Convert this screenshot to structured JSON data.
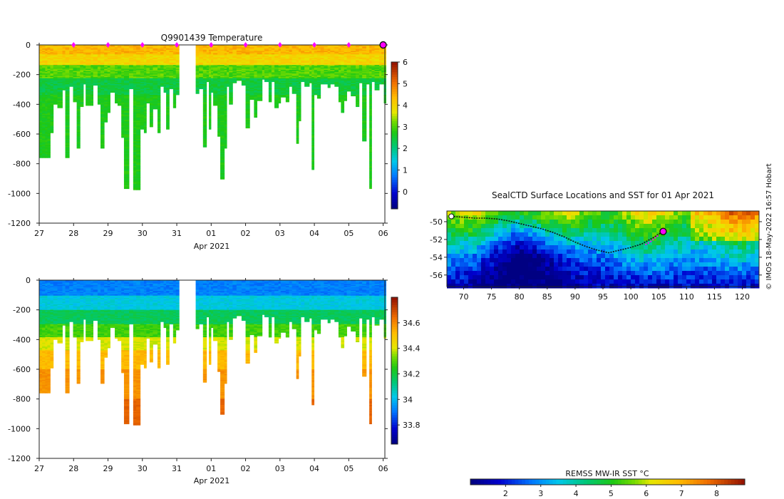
{
  "chart_data": [
    {
      "id": "temp",
      "type": "heatmap",
      "title": "Q9901439  Temperature",
      "xlabel": "Apr 2021",
      "ylabel": "",
      "x_ticks": [
        {
          "day": 0,
          "label": "27"
        },
        {
          "day": 1,
          "label": "28"
        },
        {
          "day": 2,
          "label": "29"
        },
        {
          "day": 3,
          "label": "30"
        },
        {
          "day": 4,
          "label": "31"
        },
        {
          "day": 5,
          "label": "01"
        },
        {
          "day": 6,
          "label": "02"
        },
        {
          "day": 7,
          "label": "03"
        },
        {
          "day": 8,
          "label": "04"
        },
        {
          "day": 9,
          "label": "05"
        },
        {
          "day": 10,
          "label": "06"
        }
      ],
      "y_ticks": [
        "0",
        "-200",
        "-400",
        "-600",
        "-800",
        "-1000",
        "-1200"
      ],
      "y_tick_values": [
        0,
        -200,
        -400,
        -600,
        -800,
        -1000,
        -1200
      ],
      "xlim": [
        0,
        10.05
      ],
      "ylim": [
        -1200,
        0
      ],
      "colorbar": {
        "min": -0.8,
        "max": 6,
        "ticks": [
          0,
          1,
          2,
          3,
          4,
          5,
          6
        ],
        "tick_labels": [
          "0",
          "1",
          "2",
          "3",
          "4",
          "5",
          "6"
        ]
      },
      "surface_markers_days": [
        1,
        2,
        3,
        4,
        5,
        6,
        7,
        8,
        9
      ],
      "current_marker_day": 10
    },
    {
      "id": "sal",
      "type": "heatmap",
      "title": "",
      "xlabel": "Apr 2021",
      "ylabel": "",
      "x_ticks": [
        {
          "day": 0,
          "label": "27"
        },
        {
          "day": 1,
          "label": "28"
        },
        {
          "day": 2,
          "label": "29"
        },
        {
          "day": 3,
          "label": "30"
        },
        {
          "day": 4,
          "label": "31"
        },
        {
          "day": 5,
          "label": "01"
        },
        {
          "day": 6,
          "label": "02"
        },
        {
          "day": 7,
          "label": "03"
        },
        {
          "day": 8,
          "label": "04"
        },
        {
          "day": 9,
          "label": "05"
        },
        {
          "day": 10,
          "label": "06"
        }
      ],
      "y_ticks": [
        "0",
        "-200",
        "-400",
        "-600",
        "-800",
        "-1000",
        "-1200"
      ],
      "y_tick_values": [
        0,
        -200,
        -400,
        -600,
        -800,
        -1000,
        -1200
      ],
      "xlim": [
        0,
        10.05
      ],
      "ylim": [
        -1200,
        0
      ],
      "colorbar": {
        "min": 33.65,
        "max": 34.8,
        "ticks": [
          33.8,
          34,
          34.2,
          34.4,
          34.6
        ],
        "tick_labels": [
          "33.8",
          "34",
          "34.2",
          "34.4",
          "34.6"
        ]
      }
    },
    {
      "id": "map",
      "type": "heatmap",
      "title": "SealCTD Surface Locations and SST for 01 Apr 2021",
      "xlabel": "",
      "ylabel": "",
      "x_ticks": [
        "70",
        "75",
        "80",
        "85",
        "90",
        "95",
        "100",
        "105",
        "110",
        "115",
        "120"
      ],
      "x_tick_values": [
        70,
        75,
        80,
        85,
        90,
        95,
        100,
        105,
        110,
        115,
        120
      ],
      "y_ticks": [
        "-50",
        "-52",
        "-54",
        "-56"
      ],
      "y_tick_values": [
        -50,
        -52,
        -54,
        -56
      ],
      "xlim": [
        67,
        123
      ],
      "ylim": [
        -57.3,
        -48.8
      ],
      "colorbar": {
        "label": "REMSS MW-IR SST °C",
        "min": 1.0,
        "max": 8.8,
        "ticks": [
          2,
          3,
          4,
          5,
          6,
          7,
          8
        ],
        "tick_labels": [
          "2",
          "3",
          "4",
          "5",
          "6",
          "7",
          "8"
        ]
      },
      "track": [
        [
          67.8,
          -49.4
        ],
        [
          70,
          -49.5
        ],
        [
          72,
          -49.6
        ],
        [
          74,
          -49.6
        ],
        [
          76,
          -49.7
        ],
        [
          78,
          -49.9
        ],
        [
          80,
          -50.2
        ],
        [
          82,
          -50.5
        ],
        [
          84,
          -50.8
        ],
        [
          86,
          -51.2
        ],
        [
          88,
          -51.7
        ],
        [
          90,
          -52.3
        ],
        [
          92,
          -52.8
        ],
        [
          94,
          -53.2
        ],
        [
          96,
          -53.5
        ],
        [
          98,
          -53.2
        ],
        [
          100,
          -52.9
        ],
        [
          102,
          -52.5
        ],
        [
          104,
          -51.8
        ],
        [
          105.8,
          -51.1
        ]
      ],
      "track_recent": [
        [
          102.6,
          -52.6
        ],
        [
          103.4,
          -52.3
        ],
        [
          104.2,
          -51.9
        ],
        [
          105.0,
          -51.5
        ]
      ],
      "current_position": [
        105.8,
        -51.1
      ],
      "start_position": [
        67.8,
        -49.4
      ]
    }
  ],
  "credit": "© IMOS 18-May-2022 16:57 Hobart"
}
